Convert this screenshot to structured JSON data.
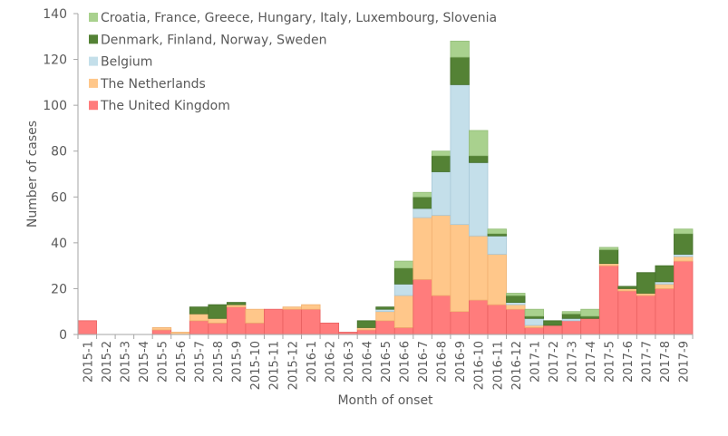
{
  "chart_data": {
    "type": "bar",
    "stacked": true,
    "title": "",
    "xlabel": "Month of onset",
    "ylabel": "Number of cases",
    "ylim": [
      0,
      140
    ],
    "yticks": [
      0,
      20,
      40,
      60,
      80,
      100,
      120,
      140
    ],
    "grid": false,
    "legend_position": "top-left",
    "categories": [
      "2015-1",
      "2015-2",
      "2015-3",
      "2015-4",
      "2015-5",
      "2015-6",
      "2015-7",
      "2015-8",
      "2015-9",
      "2015-10",
      "2015-11",
      "2015-12",
      "2016-1",
      "2016-2",
      "2016-3",
      "2016-4",
      "2016-5",
      "2016-6",
      "2016-7",
      "2016-8",
      "2016-9",
      "2016-10",
      "2016-11",
      "2016-12",
      "2017-1",
      "2017-2",
      "2017-3",
      "2017-4",
      "2017-5",
      "2017-6",
      "2017-7",
      "2017-8",
      "2017-9"
    ],
    "series": [
      {
        "name": "The United Kingdom",
        "color": "#ff7c7c",
        "values": [
          6,
          0,
          0,
          0,
          2,
          0,
          6,
          5,
          12,
          5,
          11,
          11,
          11,
          5,
          1,
          2,
          6,
          3,
          24,
          17,
          10,
          15,
          13,
          11,
          3,
          4,
          6,
          7,
          30,
          19,
          17,
          20,
          32
        ]
      },
      {
        "name": "The Netherlands",
        "color": "#ffc78a",
        "values": [
          0,
          0,
          0,
          0,
          1,
          1,
          3,
          2,
          1,
          6,
          0,
          1,
          2,
          0,
          0,
          1,
          4,
          14,
          27,
          35,
          38,
          28,
          22,
          2,
          1,
          0,
          0,
          0,
          1,
          1,
          1,
          2,
          2
        ]
      },
      {
        "name": "Belgium",
        "color": "#c4dfea",
        "values": [
          0,
          0,
          0,
          0,
          0,
          0,
          0,
          0,
          0,
          0,
          0,
          0,
          0,
          0,
          0,
          0,
          1,
          5,
          4,
          19,
          61,
          32,
          8,
          1,
          3,
          0,
          1,
          0,
          0,
          0,
          0,
          1,
          1
        ]
      },
      {
        "name": "Denmark, Finland, Norway, Sweden",
        "color": "#548235",
        "values": [
          0,
          0,
          0,
          0,
          0,
          0,
          3,
          6,
          1,
          0,
          0,
          0,
          0,
          0,
          0,
          3,
          1,
          7,
          5,
          7,
          12,
          3,
          1,
          3,
          1,
          2,
          2,
          1,
          6,
          1,
          9,
          7,
          9
        ]
      },
      {
        "name": "Croatia, France, Greece, Hungary, Italy, Luxembourg, Slovenia",
        "color": "#a9d18e",
        "values": [
          0,
          0,
          0,
          0,
          0,
          0,
          0,
          0,
          0,
          0,
          0,
          0,
          0,
          0,
          0,
          0,
          0,
          3,
          2,
          2,
          7,
          11,
          2,
          1,
          3,
          0,
          1,
          3,
          1,
          0,
          0,
          0,
          2
        ]
      }
    ]
  }
}
